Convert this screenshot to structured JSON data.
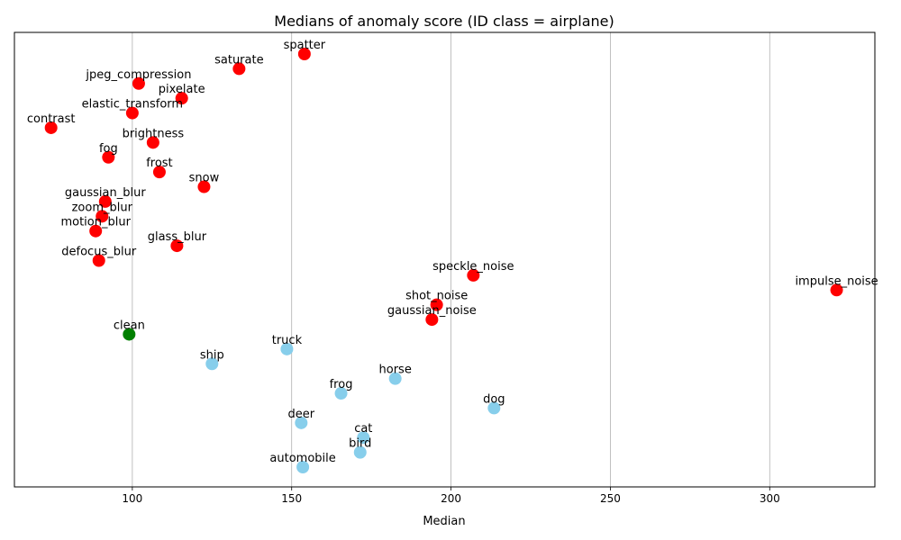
{
  "chart_data": {
    "type": "scatter",
    "title": "Medians of anomaly score (ID class = airplane)",
    "xlabel": "Median",
    "ylabel": "",
    "xlim": [
      63,
      333
    ],
    "xticks": [
      100,
      150,
      200,
      250,
      300
    ],
    "grid": "vertical",
    "colors": {
      "corruption": "#ff0000",
      "clean": "#008000",
      "ood_class": "#87ceeb"
    },
    "points": [
      {
        "label": "spatter",
        "x": 154,
        "group": "corruption"
      },
      {
        "label": "saturate",
        "x": 133.5,
        "group": "corruption"
      },
      {
        "label": "jpeg_compression",
        "x": 102,
        "group": "corruption"
      },
      {
        "label": "pixelate",
        "x": 115.5,
        "group": "corruption"
      },
      {
        "label": "elastic_transform",
        "x": 100,
        "group": "corruption"
      },
      {
        "label": "contrast",
        "x": 74.5,
        "group": "corruption"
      },
      {
        "label": "brightness",
        "x": 106.5,
        "group": "corruption"
      },
      {
        "label": "fog",
        "x": 92.5,
        "group": "corruption"
      },
      {
        "label": "frost",
        "x": 108.5,
        "group": "corruption"
      },
      {
        "label": "snow",
        "x": 122.5,
        "group": "corruption"
      },
      {
        "label": "gaussian_blur",
        "x": 91.5,
        "group": "corruption"
      },
      {
        "label": "zoom_blur",
        "x": 90.5,
        "group": "corruption"
      },
      {
        "label": "motion_blur",
        "x": 88.5,
        "group": "corruption"
      },
      {
        "label": "glass_blur",
        "x": 114,
        "group": "corruption"
      },
      {
        "label": "defocus_blur",
        "x": 89.5,
        "group": "corruption"
      },
      {
        "label": "speckle_noise",
        "x": 207,
        "group": "corruption"
      },
      {
        "label": "impulse_noise",
        "x": 321,
        "group": "corruption"
      },
      {
        "label": "shot_noise",
        "x": 195.5,
        "group": "corruption"
      },
      {
        "label": "gaussian_noise",
        "x": 194,
        "group": "corruption"
      },
      {
        "label": "clean",
        "x": 99,
        "group": "clean"
      },
      {
        "label": "truck",
        "x": 148.5,
        "group": "ood_class"
      },
      {
        "label": "ship",
        "x": 125,
        "group": "ood_class"
      },
      {
        "label": "horse",
        "x": 182.5,
        "group": "ood_class"
      },
      {
        "label": "frog",
        "x": 165.5,
        "group": "ood_class"
      },
      {
        "label": "dog",
        "x": 213.5,
        "group": "ood_class"
      },
      {
        "label": "deer",
        "x": 153,
        "group": "ood_class"
      },
      {
        "label": "cat",
        "x": 172.5,
        "group": "ood_class"
      },
      {
        "label": "bird",
        "x": 171.5,
        "group": "ood_class"
      },
      {
        "label": "automobile",
        "x": 153.5,
        "group": "ood_class"
      }
    ]
  }
}
